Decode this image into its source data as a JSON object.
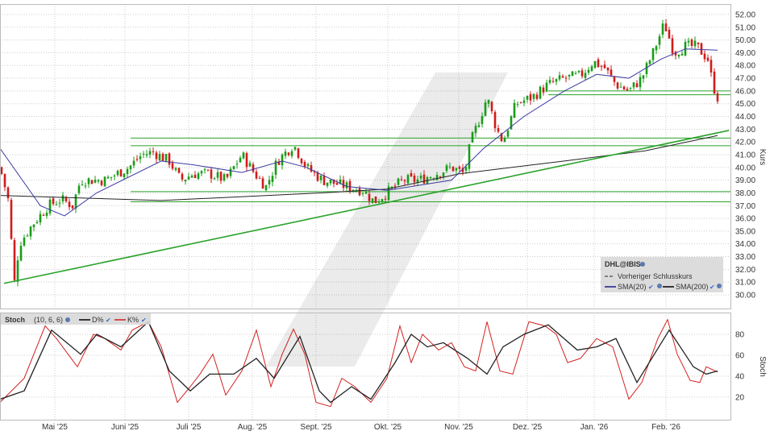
{
  "chart_data": [
    {
      "type": "candlestick",
      "title": "DHL@IBIS",
      "ylabel": "Kurs",
      "ylim": [
        29,
        52.8
      ],
      "yticks": [
        "30.00",
        "31.00",
        "32.00",
        "33.00",
        "34.00",
        "35.00",
        "36.00",
        "37.00",
        "38.00",
        "39.00",
        "40.00",
        "41.00",
        "42.00",
        "43.00",
        "44.00",
        "45.00",
        "46.00",
        "47.00",
        "48.00",
        "49.00",
        "50.00",
        "51.00",
        "52.00"
      ],
      "x_unit": "trading day index",
      "xlim": [
        0,
        228
      ],
      "month_labels": [
        {
          "label": "Mai '25",
          "day": 17
        },
        {
          "label": "Juni '25",
          "day": 38.75
        },
        {
          "label": "Juli '25",
          "day": 58.5
        },
        {
          "label": "Aug. '25",
          "day": 78.25
        },
        {
          "label": "Sept. '25",
          "day": 98
        },
        {
          "label": "Okt. '25",
          "day": 120.25
        },
        {
          "label": "Nov. '25",
          "day": 142.25
        },
        {
          "label": "Dez. '25",
          "day": 163.5
        },
        {
          "label": "Jan. '26",
          "day": 184.25
        },
        {
          "label": "Feb. '26",
          "day": 206.5
        }
      ],
      "close_path": [
        [
          0,
          40
        ],
        [
          2.5,
          37.5
        ],
        [
          4.5,
          31
        ],
        [
          6,
          34
        ],
        [
          10,
          35.5
        ],
        [
          15,
          37
        ],
        [
          19,
          37.5
        ],
        [
          22.5,
          37
        ],
        [
          25,
          39
        ],
        [
          32.5,
          39
        ],
        [
          40,
          40
        ],
        [
          44,
          41
        ],
        [
          47.5,
          41.2
        ],
        [
          52.5,
          40.5
        ],
        [
          56,
          39
        ],
        [
          60,
          39.5
        ],
        [
          65,
          39.5
        ],
        [
          70,
          39
        ],
        [
          75,
          41
        ],
        [
          79,
          39.5
        ],
        [
          82.5,
          38.5
        ],
        [
          86,
          40.5
        ],
        [
          91,
          41.8
        ],
        [
          95,
          40
        ],
        [
          100,
          39
        ],
        [
          107.5,
          38.5
        ],
        [
          112.5,
          38.2
        ],
        [
          116,
          37.3
        ],
        [
          120,
          38
        ],
        [
          125,
          39
        ],
        [
          130,
          39
        ],
        [
          135,
          39.5
        ],
        [
          140,
          40
        ],
        [
          144,
          39.5
        ],
        [
          146,
          42
        ],
        [
          149,
          44
        ],
        [
          151,
          45.5
        ],
        [
          154,
          43
        ],
        [
          156,
          42
        ],
        [
          160,
          45
        ],
        [
          165,
          45.5
        ],
        [
          170,
          46.5
        ],
        [
          175,
          47
        ],
        [
          180,
          47.2
        ],
        [
          184,
          48.3
        ],
        [
          187.5,
          47.8
        ],
        [
          191,
          46.5
        ],
        [
          195,
          46
        ],
        [
          199,
          47
        ],
        [
          202.5,
          49
        ],
        [
          206,
          51.3
        ],
        [
          209,
          49
        ],
        [
          212.5,
          49.5
        ],
        [
          216,
          49.5
        ],
        [
          219.5,
          48.5
        ],
        [
          221,
          46.5
        ],
        [
          222.5,
          45.5
        ]
      ],
      "sma20": [
        [
          0,
          41.5
        ],
        [
          12.5,
          37
        ],
        [
          20,
          36.2
        ],
        [
          30,
          38
        ],
        [
          50,
          40.5
        ],
        [
          60,
          40.2
        ],
        [
          75,
          39.6
        ],
        [
          87.5,
          40.5
        ],
        [
          95,
          40
        ],
        [
          107.5,
          38.5
        ],
        [
          120,
          38.2
        ],
        [
          140,
          39
        ],
        [
          150,
          41.5
        ],
        [
          162.5,
          44
        ],
        [
          175,
          46
        ],
        [
          185,
          47.3
        ],
        [
          195,
          47
        ],
        [
          205,
          48.5
        ],
        [
          212.5,
          49.3
        ],
        [
          222.5,
          49.2
        ]
      ],
      "sma200": [
        [
          0,
          37.8
        ],
        [
          50,
          37.4
        ],
        [
          100,
          38
        ],
        [
          120,
          38.3
        ],
        [
          142.5,
          39.5
        ],
        [
          175,
          40.5
        ],
        [
          200,
          41.3
        ],
        [
          222.5,
          42.5
        ]
      ],
      "trendline": [
        [
          1.25,
          30.9
        ],
        [
          226,
          42.9
        ]
      ],
      "horizontal_lines": [
        46.0,
        45.7,
        42.3,
        41.7,
        38.1,
        37.3
      ],
      "legend": {
        "title": "DHL@IBIS",
        "items": [
          "Vorheriger Schlusskurs",
          "SMA(20)",
          "SMA(200)"
        ]
      },
      "colors": {
        "up": "#1a9c1a",
        "down": "#d01c1c",
        "sma20": "#3a3aa0",
        "sma200": "#222222",
        "lines": "#2aa22a"
      }
    },
    {
      "type": "line",
      "title": "Stoch",
      "params": "(10, 6, 6)",
      "ylabel": "Stoch",
      "ylim": [
        0,
        100
      ],
      "yticks": [
        "20",
        "40",
        "60",
        "80"
      ],
      "series": [
        {
          "name": "D%",
          "color": "#222222",
          "values": [
            [
              0,
              18
            ],
            [
              7.5,
              26
            ],
            [
              16,
              84
            ],
            [
              25,
              61
            ],
            [
              30,
              80
            ],
            [
              37.5,
              68
            ],
            [
              46,
              92
            ],
            [
              52.5,
              45
            ],
            [
              59,
              26
            ],
            [
              65,
              42
            ],
            [
              72.5,
              42
            ],
            [
              79.5,
              57
            ],
            [
              85,
              38
            ],
            [
              93,
              78
            ],
            [
              99,
              26
            ],
            [
              102.5,
              15
            ],
            [
              109,
              30
            ],
            [
              115,
              18
            ],
            [
              122.5,
              53
            ],
            [
              127.5,
              80
            ],
            [
              132.5,
              68
            ],
            [
              137.5,
              72
            ],
            [
              145,
              57
            ],
            [
              151,
              42
            ],
            [
              156,
              68
            ],
            [
              162.5,
              80
            ],
            [
              170,
              89
            ],
            [
              179,
              65
            ],
            [
              185,
              68
            ],
            [
              191,
              76
            ],
            [
              197.5,
              34
            ],
            [
              207.5,
              84
            ],
            [
              215,
              49
            ],
            [
              219,
              42
            ],
            [
              222.5,
              45
            ]
          ]
        },
        {
          "name": "K%",
          "color": "#d42020",
          "values": [
            [
              0,
              15
            ],
            [
              7.5,
              38
            ],
            [
              14,
              88
            ],
            [
              17.5,
              76
            ],
            [
              24,
              49
            ],
            [
              29,
              80
            ],
            [
              32.5,
              76
            ],
            [
              37.5,
              65
            ],
            [
              41,
              84
            ],
            [
              46,
              92
            ],
            [
              50,
              68
            ],
            [
              55,
              15
            ],
            [
              59,
              30
            ],
            [
              62,
              42
            ],
            [
              66,
              61
            ],
            [
              70,
              22
            ],
            [
              75,
              45
            ],
            [
              79.5,
              84
            ],
            [
              84,
              30
            ],
            [
              87.5,
              61
            ],
            [
              91,
              85
            ],
            [
              94.5,
              61
            ],
            [
              98,
              15
            ],
            [
              102.5,
              11
            ],
            [
              106,
              38
            ],
            [
              110,
              30
            ],
            [
              115,
              15
            ],
            [
              120,
              38
            ],
            [
              124,
              88
            ],
            [
              127.5,
              53
            ],
            [
              131,
              80
            ],
            [
              136,
              65
            ],
            [
              140,
              72
            ],
            [
              144,
              49
            ],
            [
              147.5,
              45
            ],
            [
              151,
              92
            ],
            [
              155,
              45
            ],
            [
              159,
              42
            ],
            [
              164,
              92
            ],
            [
              169,
              88
            ],
            [
              172.5,
              80
            ],
            [
              176,
              53
            ],
            [
              180,
              57
            ],
            [
              185,
              76
            ],
            [
              190,
              68
            ],
            [
              195,
              18
            ],
            [
              199,
              34
            ],
            [
              204,
              76
            ],
            [
              207,
              94
            ],
            [
              210,
              61
            ],
            [
              214,
              36
            ],
            [
              217,
              34
            ],
            [
              219,
              49
            ],
            [
              222.5,
              44
            ]
          ]
        }
      ]
    }
  ]
}
